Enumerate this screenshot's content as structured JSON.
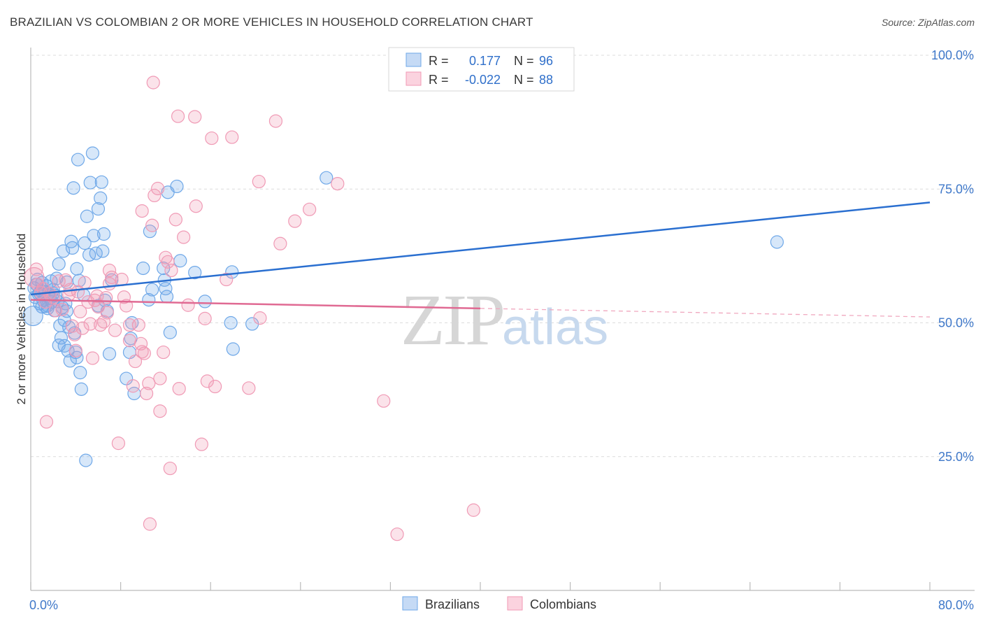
{
  "title": "BRAZILIAN VS COLOMBIAN 2 OR MORE VEHICLES IN HOUSEHOLD CORRELATION CHART",
  "source": "Source: ZipAtlas.com",
  "watermark": {
    "zip": "ZIP",
    "atlas": "atlas"
  },
  "legend": {
    "rows": [
      {
        "r_label": "R =",
        "r_value": "0.177",
        "n_label": "N =",
        "n_value": "96",
        "color": "#6fa8e8"
      },
      {
        "r_label": "R =",
        "r_value": "-0.022",
        "n_label": "N =",
        "n_value": "88",
        "color": "#f09ab5"
      }
    ]
  },
  "bottom_legend": [
    {
      "label": "Brazilians",
      "color": "#6fa8e8"
    },
    {
      "label": "Colombians",
      "color": "#f09ab5"
    }
  ],
  "chart_data": {
    "type": "scatter",
    "title": "BRAZILIAN VS COLOMBIAN 2 OR MORE VEHICLES IN HOUSEHOLD CORRELATION CHART",
    "ylabel": "2 or more Vehicles in Household",
    "xlim": [
      0,
      80
    ],
    "ylim": [
      0,
      100
    ],
    "x_tick_labels": [
      "0.0%",
      "80.0%"
    ],
    "y_tick_labels": [
      "25.0%",
      "50.0%",
      "75.0%",
      "100.0%"
    ],
    "y_ticks": [
      25,
      50,
      75,
      100
    ],
    "grid": true,
    "series": [
      {
        "name": "Brazilians",
        "color": "#6fa8e8",
        "trend": {
          "x": [
            0,
            80
          ],
          "y": [
            55.3,
            72.5
          ]
        },
        "points": [
          [
            0.3,
            56.5
          ],
          [
            0.4,
            54.8
          ],
          [
            0.5,
            57.2
          ],
          [
            0.6,
            58.1
          ],
          [
            0.7,
            55.4
          ],
          [
            0.8,
            53.6
          ],
          [
            0.9,
            56.0
          ],
          [
            1.0,
            57.5
          ],
          [
            1.1,
            54.2
          ],
          [
            1.2,
            55.8
          ],
          [
            1.3,
            53.1
          ],
          [
            1.4,
            56.9
          ],
          [
            1.5,
            52.7
          ],
          [
            1.6,
            55.3
          ],
          [
            1.7,
            54.6
          ],
          [
            1.8,
            57.8
          ],
          [
            1.9,
            53.9
          ],
          [
            2.0,
            56.2
          ],
          [
            2.1,
            52.3
          ],
          [
            2.2,
            55.1
          ],
          [
            2.3,
            58.3
          ],
          [
            2.4,
            54.0
          ],
          [
            2.5,
            61.0
          ],
          [
            2.6,
            49.5
          ],
          [
            2.7,
            47.2
          ],
          [
            2.8,
            52.9
          ],
          [
            2.9,
            63.4
          ],
          [
            3.0,
            45.7
          ],
          [
            3.1,
            53.6
          ],
          [
            3.2,
            57.6
          ],
          [
            3.3,
            44.8
          ],
          [
            3.4,
            49.2
          ],
          [
            3.5,
            42.9
          ],
          [
            3.6,
            65.2
          ],
          [
            3.7,
            64.0
          ],
          [
            3.8,
            75.2
          ],
          [
            3.9,
            48.1
          ],
          [
            4.0,
            44.5
          ],
          [
            4.1,
            60.1
          ],
          [
            4.2,
            80.5
          ],
          [
            4.3,
            57.9
          ],
          [
            4.4,
            40.7
          ],
          [
            4.5,
            37.6
          ],
          [
            4.7,
            55.2
          ],
          [
            4.8,
            64.9
          ],
          [
            5.0,
            69.9
          ],
          [
            5.2,
            62.7
          ],
          [
            5.3,
            76.2
          ],
          [
            5.5,
            81.7
          ],
          [
            5.6,
            66.3
          ],
          [
            5.8,
            63.0
          ],
          [
            6.0,
            71.3
          ],
          [
            6.2,
            73.3
          ],
          [
            6.3,
            76.3
          ],
          [
            6.4,
            63.4
          ],
          [
            6.5,
            66.6
          ],
          [
            6.6,
            54.2
          ],
          [
            6.8,
            52.2
          ],
          [
            7.0,
            44.2
          ],
          [
            7.2,
            58.0
          ],
          [
            8.5,
            39.6
          ],
          [
            8.8,
            44.5
          ],
          [
            8.9,
            47.1
          ],
          [
            9.0,
            50.0
          ],
          [
            9.2,
            36.8
          ],
          [
            10.0,
            60.2
          ],
          [
            10.5,
            54.3
          ],
          [
            10.6,
            67.1
          ],
          [
            10.8,
            56.2
          ],
          [
            11.9,
            58.0
          ],
          [
            11.8,
            60.2
          ],
          [
            12.0,
            56.4
          ],
          [
            12.1,
            54.9
          ],
          [
            12.2,
            74.4
          ],
          [
            12.4,
            48.2
          ],
          [
            13.0,
            75.5
          ],
          [
            13.3,
            61.6
          ],
          [
            14.6,
            59.4
          ],
          [
            15.5,
            54.0
          ],
          [
            17.8,
            50.0
          ],
          [
            17.9,
            59.5
          ],
          [
            18.0,
            45.1
          ],
          [
            19.7,
            49.8
          ],
          [
            26.3,
            77.1
          ],
          [
            66.4,
            65.1
          ],
          [
            4.9,
            24.3
          ],
          [
            0.2,
            51.3
          ],
          [
            2.5,
            45.8
          ],
          [
            1.5,
            53.2
          ],
          [
            3.2,
            52.2
          ],
          [
            1.0,
            53.0
          ],
          [
            0.8,
            55.6
          ],
          [
            4.1,
            43.5
          ],
          [
            6.0,
            53.2
          ],
          [
            3.0,
            50.5
          ],
          [
            2.0,
            55.5
          ]
        ]
      },
      {
        "name": "Colombians",
        "color": "#f09ab5",
        "trend": {
          "x": [
            0,
            40
          ],
          "y": [
            54.3,
            52.7
          ]
        },
        "trend_dashed": {
          "x": [
            40,
            80
          ],
          "y": [
            52.7,
            51.1
          ]
        },
        "points": [
          [
            0.3,
            58.5
          ],
          [
            0.6,
            57.2
          ],
          [
            0.9,
            55.6
          ],
          [
            1.3,
            53.9
          ],
          [
            1.4,
            31.5
          ],
          [
            1.7,
            55.5
          ],
          [
            2.0,
            54.8
          ],
          [
            2.5,
            57.8
          ],
          [
            2.8,
            52.5
          ],
          [
            3.1,
            58.0
          ],
          [
            3.5,
            56.2
          ],
          [
            3.7,
            49.4
          ],
          [
            3.9,
            47.8
          ],
          [
            4.2,
            55.8
          ],
          [
            4.4,
            52.1
          ],
          [
            4.6,
            49.0
          ],
          [
            4.8,
            57.5
          ],
          [
            5.1,
            53.9
          ],
          [
            5.3,
            49.8
          ],
          [
            5.5,
            43.4
          ],
          [
            5.7,
            54.2
          ],
          [
            6.0,
            53.0
          ],
          [
            6.2,
            49.6
          ],
          [
            6.5,
            50.2
          ],
          [
            6.7,
            54.7
          ],
          [
            7.0,
            57.3
          ],
          [
            7.2,
            58.5
          ],
          [
            7.5,
            48.6
          ],
          [
            7.8,
            27.5
          ],
          [
            8.3,
            54.8
          ],
          [
            8.5,
            53.2
          ],
          [
            8.8,
            46.7
          ],
          [
            9.1,
            38.2
          ],
          [
            9.3,
            42.8
          ],
          [
            9.6,
            49.6
          ],
          [
            9.8,
            46.1
          ],
          [
            10.1,
            44.3
          ],
          [
            10.3,
            36.8
          ],
          [
            10.5,
            38.7
          ],
          [
            10.8,
            68.2
          ],
          [
            11.0,
            73.8
          ],
          [
            11.3,
            75.1
          ],
          [
            11.5,
            33.5
          ],
          [
            11.8,
            44.5
          ],
          [
            12.0,
            62.2
          ],
          [
            12.2,
            61.4
          ],
          [
            12.4,
            22.8
          ],
          [
            12.9,
            69.3
          ],
          [
            13.2,
            37.7
          ],
          [
            13.6,
            66.0
          ],
          [
            14.0,
            53.3
          ],
          [
            14.7,
            71.8
          ],
          [
            15.2,
            27.3
          ],
          [
            15.5,
            50.8
          ],
          [
            15.7,
            39.1
          ],
          [
            16.1,
            84.5
          ],
          [
            16.4,
            38.1
          ],
          [
            17.4,
            58.1
          ],
          [
            17.9,
            84.7
          ],
          [
            19.4,
            37.8
          ],
          [
            20.3,
            76.4
          ],
          [
            20.4,
            50.9
          ],
          [
            21.8,
            87.7
          ],
          [
            22.2,
            64.8
          ],
          [
            23.5,
            69.0
          ],
          [
            24.8,
            71.2
          ],
          [
            27.3,
            76.0
          ],
          [
            31.4,
            35.4
          ],
          [
            32.6,
            10.5
          ],
          [
            39.4,
            15.0
          ],
          [
            10.9,
            94.9
          ],
          [
            13.1,
            88.6
          ],
          [
            14.6,
            88.5
          ],
          [
            9.9,
            70.9
          ],
          [
            8.1,
            58.1
          ],
          [
            7.0,
            59.8
          ],
          [
            5.9,
            55.0
          ],
          [
            3.4,
            55.3
          ],
          [
            2.2,
            52.3
          ],
          [
            1.1,
            56.4
          ],
          [
            0.5,
            60.0
          ],
          [
            6.8,
            51.9
          ],
          [
            4.0,
            44.8
          ],
          [
            12.5,
            59.8
          ],
          [
            10.6,
            12.4
          ],
          [
            8.8,
            49.6
          ],
          [
            9.9,
            44.6
          ],
          [
            11.5,
            39.6
          ]
        ]
      }
    ]
  }
}
